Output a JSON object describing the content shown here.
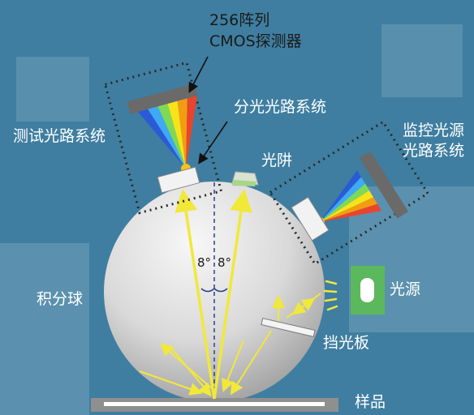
{
  "detector": {
    "line1": "256阵列",
    "line2": "CMOS探测器"
  },
  "labels": {
    "test_path": "测试光路系统",
    "split_path": "分光光路系统",
    "light_trap": "光阱",
    "monitor_line1": "监控光源",
    "monitor_line2": "光路系统",
    "sphere": "积分球",
    "light_source": "光源",
    "baffle": "挡光板",
    "sample": "样品",
    "angle_left": "8°",
    "angle_right": "8°"
  },
  "colors": {
    "background": "#3f7ea0",
    "sphere_light": "#f4f4f4",
    "sphere_dark": "#9e9e9e",
    "ray_yellow": "#f1e83a",
    "detector_gray": "#6a6a6a",
    "trap_green": "#a8d58a",
    "source_green": "#5cb85c",
    "spectrum": [
      "#2a5bd7",
      "#3fa9f5",
      "#7ed957",
      "#f6e31a",
      "#f39c12",
      "#e8452c"
    ]
  }
}
